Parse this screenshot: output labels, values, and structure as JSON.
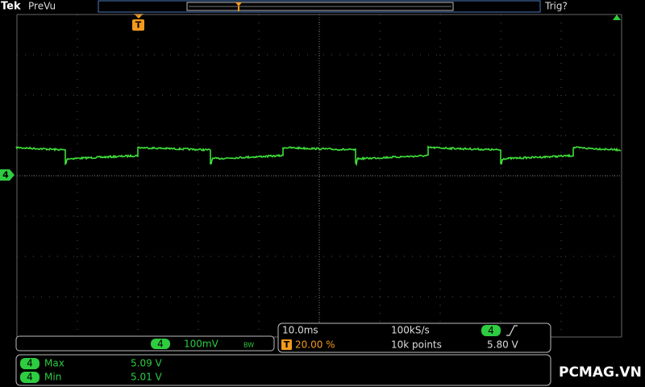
{
  "header": {
    "brand": "Tek",
    "mode": "PreVu",
    "trigger_status": "Trig?"
  },
  "markers": {
    "trigger": "T",
    "channel": "4"
  },
  "channel": {
    "number": "4",
    "scale": "100mV",
    "bandwidth": "BW"
  },
  "timebase": {
    "scale": "10.0ms",
    "sample_rate": "100kS/s",
    "trigger_channel": "4",
    "trigger_position_icon": "T",
    "trigger_position": "20.00 %",
    "record_length": "10k points",
    "trigger_level": "5.80 V"
  },
  "measurements": [
    {
      "channel": "4",
      "name": "Max",
      "value": "5.09 V"
    },
    {
      "channel": "4",
      "name": "Min",
      "value": "5.01 V"
    }
  ],
  "watermark": "PCMAG.VN"
}
